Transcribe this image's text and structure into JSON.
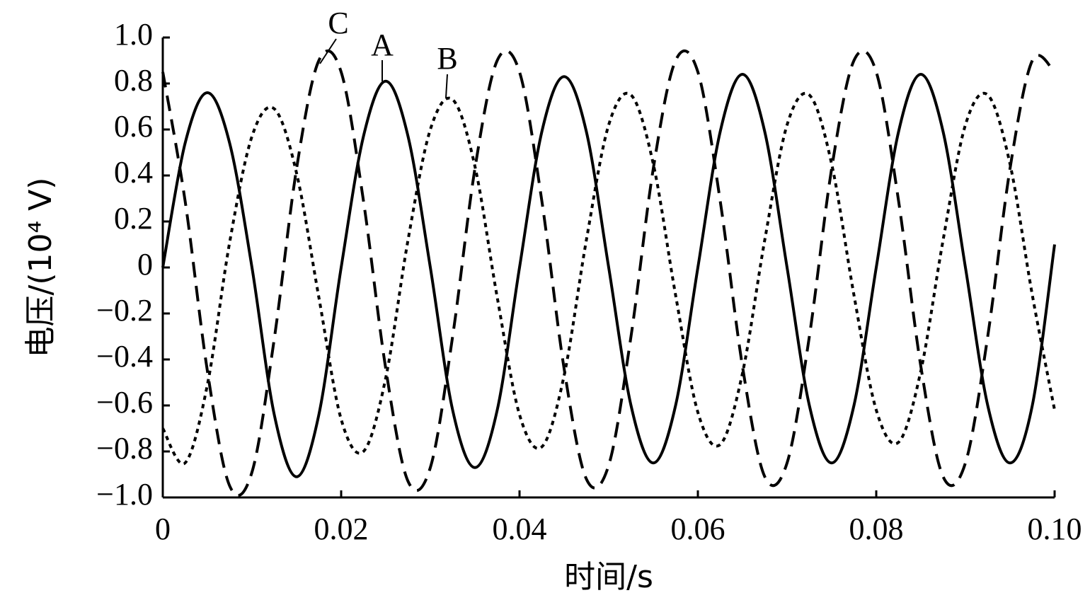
{
  "chart_data": {
    "type": "line",
    "x_label": "时间/s",
    "y_label": "电压/(10⁴ V)",
    "x": [
      0,
      0.0025,
      0.005,
      0.0075,
      0.01,
      0.0125,
      0.015,
      0.0175,
      0.02,
      0.0225,
      0.025,
      0.0275,
      0.03,
      0.0325,
      0.035,
      0.0375,
      0.04,
      0.0425,
      0.045,
      0.0475,
      0.05,
      0.0525,
      0.055,
      0.0575,
      0.06,
      0.0625,
      0.065,
      0.0675,
      0.07,
      0.0725,
      0.075,
      0.0775,
      0.08,
      0.0825,
      0.085,
      0.0875,
      0.09,
      0.0925,
      0.095,
      0.0975,
      0.1
    ],
    "series": [
      {
        "name": "A",
        "color": "#000000",
        "style": "solid",
        "values": [
          0,
          0.54,
          0.76,
          0.54,
          0,
          -0.64,
          -0.91,
          -0.64,
          0,
          0.57,
          0.81,
          0.57,
          0,
          -0.62,
          -0.87,
          -0.62,
          0,
          0.59,
          0.83,
          0.59,
          0,
          -0.6,
          -0.85,
          -0.6,
          0,
          0.59,
          0.84,
          0.59,
          0,
          -0.6,
          -0.85,
          -0.6,
          0,
          0.59,
          0.84,
          0.59,
          0,
          -0.6,
          -0.85,
          -0.6,
          0.1
        ]
      },
      {
        "name": "B",
        "color": "#000000",
        "style": "dotted",
        "values": [
          -0.7,
          -0.85,
          -0.51,
          0.11,
          0.57,
          0.69,
          0.41,
          -0.13,
          -0.66,
          -0.8,
          -0.48,
          0.12,
          0.6,
          0.73,
          0.44,
          -0.13,
          -0.64,
          -0.78,
          -0.47,
          0.12,
          0.62,
          0.75,
          0.45,
          -0.12,
          -0.63,
          -0.77,
          -0.46,
          0.12,
          0.62,
          0.75,
          0.45,
          -0.12,
          -0.62,
          -0.76,
          -0.45,
          0.12,
          0.62,
          0.75,
          0.45,
          -0.12,
          -0.62
        ]
      },
      {
        "name": "C",
        "color": "#000000",
        "style": "dashed",
        "values": [
          0.85,
          0.29,
          -0.45,
          -0.95,
          -0.89,
          -0.31,
          0.43,
          0.9,
          0.85,
          0.29,
          -0.44,
          -0.93,
          -0.87,
          -0.3,
          0.43,
          0.9,
          0.85,
          0.29,
          -0.44,
          -0.92,
          -0.86,
          -0.3,
          0.43,
          0.9,
          0.85,
          0.29,
          -0.43,
          -0.91,
          -0.85,
          -0.3,
          0.43,
          0.9,
          0.85,
          0.29,
          -0.43,
          -0.91,
          -0.85,
          -0.3,
          0.43,
          0.9,
          0.85
        ]
      }
    ],
    "xlim": [
      0,
      0.1
    ],
    "ylim": [
      -1,
      1
    ],
    "xticks": [
      0,
      0.02,
      0.04,
      0.06,
      0.08,
      {
        "value": 0.1,
        "label": "0.10"
      }
    ],
    "yticks": [
      {
        "value": 1,
        "label": "1.0"
      },
      0.8,
      0.6,
      0.4,
      0.2,
      0,
      {
        "value": -0.2,
        "label": "−0.2"
      },
      {
        "value": -0.4,
        "label": "−0.4"
      },
      {
        "value": -0.6,
        "label": "−0.6"
      },
      {
        "value": -0.8,
        "label": "−0.8"
      },
      {
        "value": -1,
        "label": "−1.0"
      }
    ],
    "grid": false
  }
}
